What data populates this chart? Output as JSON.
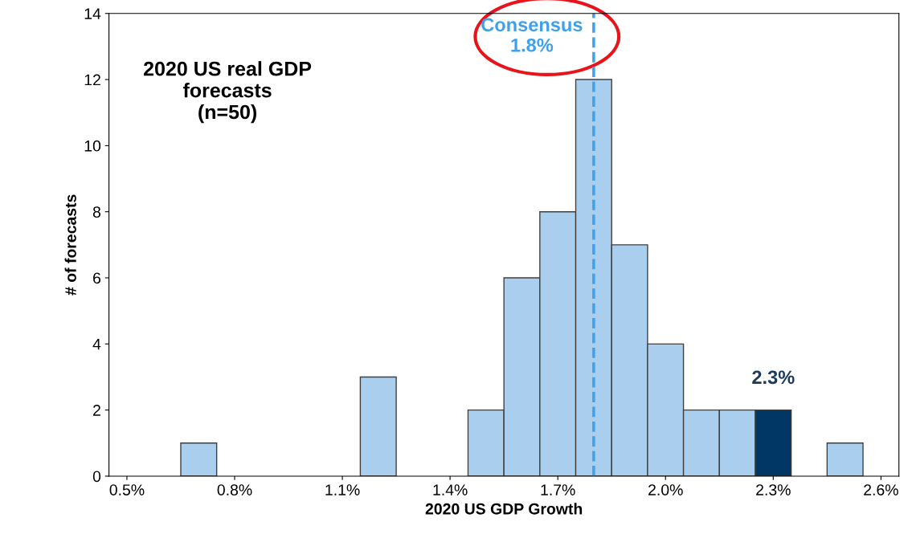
{
  "chart_data": {
    "type": "histogram",
    "xlabel": "2020 US GDP Growth",
    "ylabel": "# of forecasts",
    "bins": [
      0.45,
      0.55,
      0.65,
      0.75,
      0.85,
      0.95,
      1.05,
      1.15,
      1.25,
      1.35,
      1.45,
      1.55,
      1.65,
      1.75,
      1.85,
      1.95,
      2.05,
      2.15,
      2.25,
      2.35,
      2.45,
      2.55,
      2.65
    ],
    "values": [
      0,
      0,
      1,
      0,
      0,
      0,
      0,
      3,
      0,
      0,
      2,
      6,
      8,
      12,
      7,
      4,
      2,
      2,
      2,
      0,
      1,
      0
    ],
    "colors": [
      "#aacfee",
      "#aacfee",
      "#aacfee",
      "#aacfee",
      "#aacfee",
      "#aacfee",
      "#aacfee",
      "#aacfee",
      "#aacfee",
      "#aacfee",
      "#aacfee",
      "#aacfee",
      "#aacfee",
      "#aacfee",
      "#aacfee",
      "#aacfee",
      "#aacfee",
      "#aacfee",
      "#003764",
      "#aacfee",
      "#aacfee",
      "#aacfee"
    ],
    "xlim": [
      0.45,
      2.65
    ],
    "ylim": [
      0,
      14
    ],
    "xticks": [
      {
        "value": 0.5,
        "label": "0.5%"
      },
      {
        "value": 0.8,
        "label": "0.8%"
      },
      {
        "value": 1.1,
        "label": "1.1%"
      },
      {
        "value": 1.4,
        "label": "1.4%"
      },
      {
        "value": 1.7,
        "label": "1.7%"
      },
      {
        "value": 2.0,
        "label": "2.0%"
      },
      {
        "value": 2.3,
        "label": "2.3%"
      },
      {
        "value": 2.6,
        "label": "2.6%"
      }
    ],
    "yticks": [
      0,
      2,
      4,
      6,
      8,
      10,
      12,
      14
    ],
    "grid": false,
    "legend": false,
    "ref_lines": [
      {
        "axis": "x",
        "value": 1.8,
        "label": "Consensus\n1.8%",
        "color": "#3fa0ec",
        "line_style": "dashed"
      }
    ],
    "annotations": [
      "2020 US real GDP\nforecasts\n(n=50)",
      {
        "text": "2.3%",
        "x": 2.3,
        "y": 2
      }
    ]
  }
}
